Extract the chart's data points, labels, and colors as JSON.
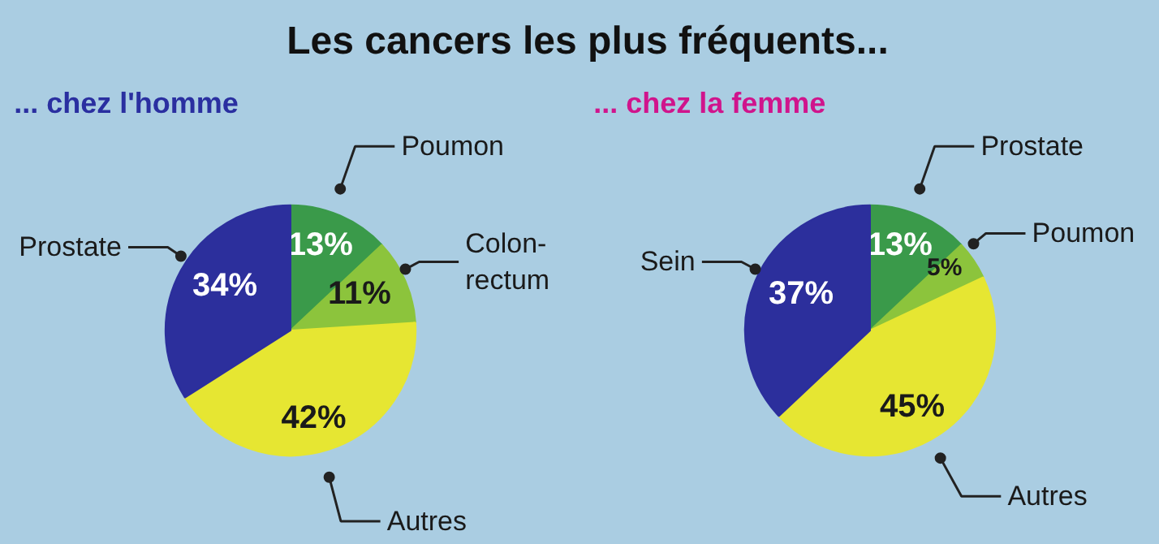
{
  "chart_data": [
    {
      "type": "pie",
      "title": "Les cancers les plus fréquents...",
      "subtitle": "... chez l'homme",
      "categories": [
        "Poumon",
        "Colon-rectum",
        "Autres",
        "Prostate"
      ],
      "values": [
        13,
        11,
        42,
        34
      ],
      "value_labels": [
        "13%",
        "11%",
        "42%",
        "34%"
      ],
      "colors": [
        "#3a9a4a",
        "#8cc43c",
        "#e6e632",
        "#2c2f9c"
      ]
    },
    {
      "type": "pie",
      "subtitle": "... chez la femme",
      "categories": [
        "Prostate",
        "Poumon",
        "Autres",
        "Sein"
      ],
      "values": [
        13,
        5,
        45,
        37
      ],
      "value_labels": [
        "13%",
        "5%",
        "45%",
        "37%"
      ],
      "colors": [
        "#3a9a4a",
        "#8cc43c",
        "#e6e632",
        "#2c2f9c"
      ]
    }
  ]
}
